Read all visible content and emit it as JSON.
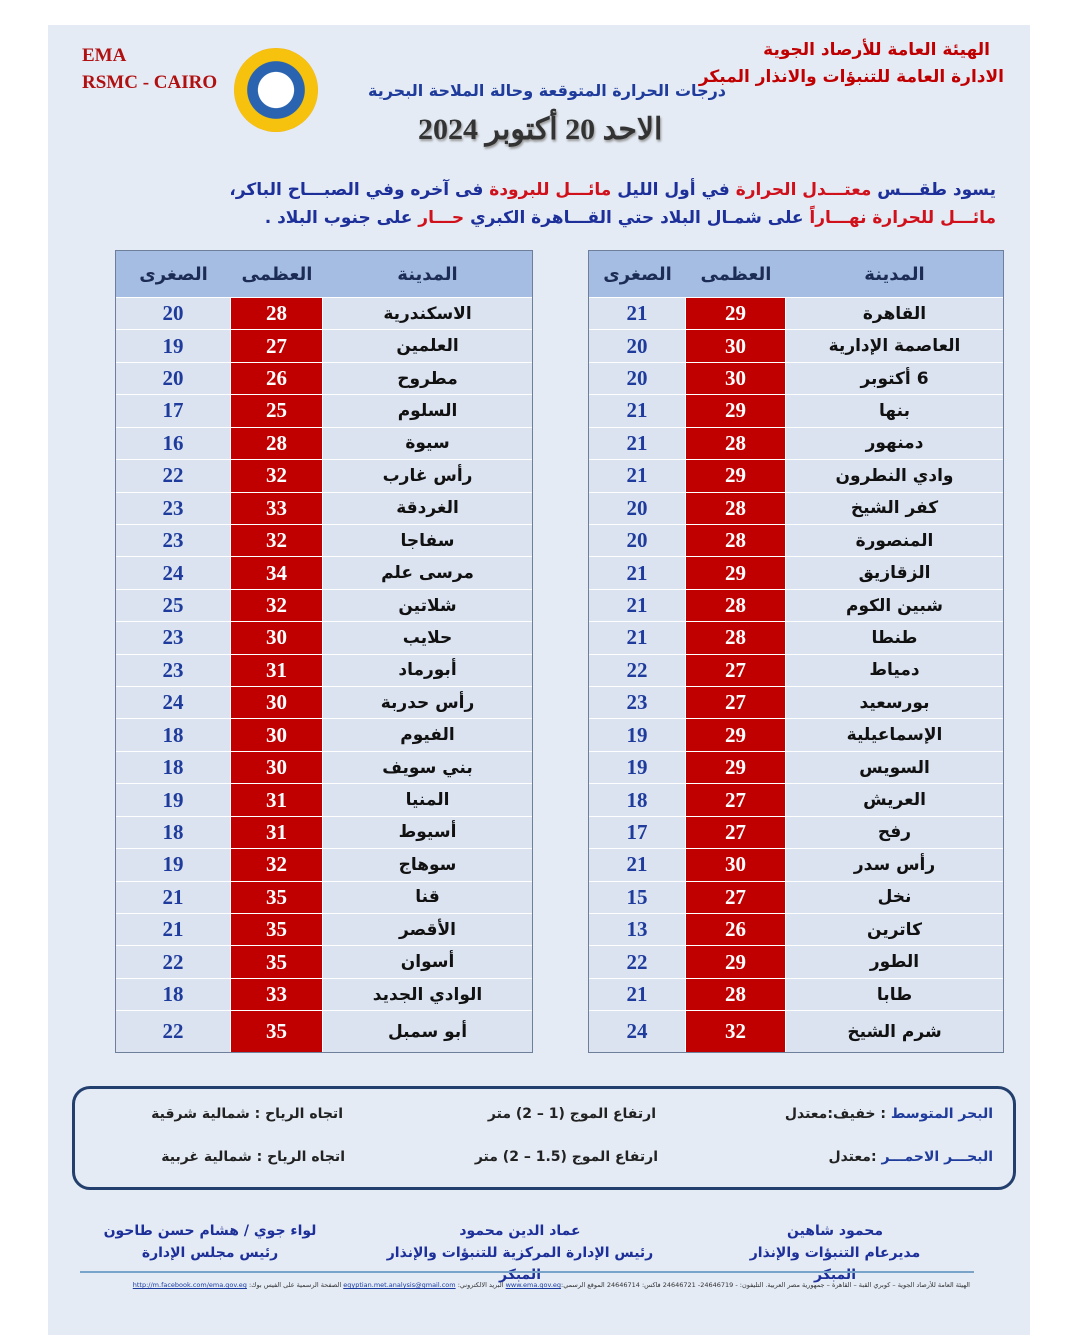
{
  "header": {
    "ema": "EMA",
    "rsmc": "RSMC - CAIRO",
    "org_line1": "الهيئة العامة للأرصاد الجوية",
    "org_line2": "الادارة العامة للتنبؤات والانذار المبكر",
    "subtitle": "درجات الحرارة المتوقعة وحالة الملاحة البحرية",
    "date": "الاحد  20  أكتوبر 2024",
    "logo_text": "EMA"
  },
  "intro": {
    "line1": [
      {
        "t": "يسود طقـــس ",
        "c": "blue"
      },
      {
        "t": "معتـــدل الحرارة",
        "c": "red"
      },
      {
        "t": " في أول الليل ",
        "c": "blue"
      },
      {
        "t": "مائـــل للبرودة",
        "c": "red"
      },
      {
        "t": " فى آخره وفي الصبـــاح الباكر،",
        "c": "blue"
      }
    ],
    "line2": [
      {
        "t": "مائـــل للحرارة نهـــاراً",
        "c": "red"
      },
      {
        "t": " على شمـال البلاد حتي القـــاهرة الكبري ",
        "c": "blue"
      },
      {
        "t": "حـــار",
        "c": "red"
      },
      {
        "t": " على جنوب البلاد .",
        "c": "blue"
      }
    ]
  },
  "columns": {
    "city": "المدينة",
    "max": "العظمى",
    "min": "الصغرى"
  },
  "right_table": [
    [
      "القاهرة",
      29,
      21
    ],
    [
      "العاصمة الإدارية",
      30,
      20
    ],
    [
      "6 أكتوبر",
      30,
      20
    ],
    [
      "بنها",
      29,
      21
    ],
    [
      "دمنهور",
      28,
      21
    ],
    [
      "وادي النطرون",
      29,
      21
    ],
    [
      "كفر الشيخ",
      28,
      20
    ],
    [
      "المنصورة",
      28,
      20
    ],
    [
      "الزقازيق",
      29,
      21
    ],
    [
      "شبين الكوم",
      28,
      21
    ],
    [
      "طنطا",
      28,
      21
    ],
    [
      "دمياط",
      27,
      22
    ],
    [
      "بورسعيد",
      27,
      23
    ],
    [
      "الإسماعيلية",
      29,
      19
    ],
    [
      "السويس",
      29,
      19
    ],
    [
      "العريش",
      27,
      18
    ],
    [
      "رفح",
      27,
      17
    ],
    [
      "رأس سدر",
      30,
      21
    ],
    [
      "نخل",
      27,
      15
    ],
    [
      "كاترين",
      26,
      13
    ],
    [
      "الطور",
      29,
      22
    ],
    [
      "طابا",
      28,
      21
    ],
    [
      "شرم الشيخ",
      32,
      24
    ]
  ],
  "left_table": [
    [
      "الاسكندرية",
      28,
      20
    ],
    [
      "العلمين",
      27,
      19
    ],
    [
      "مطروح",
      26,
      20
    ],
    [
      "السلوم",
      25,
      17
    ],
    [
      "سيوة",
      28,
      16
    ],
    [
      "رأس غارب",
      32,
      22
    ],
    [
      "الغردقة",
      33,
      23
    ],
    [
      "سفاجا",
      32,
      23
    ],
    [
      "مرسى علم",
      34,
      24
    ],
    [
      "شلاتين",
      32,
      25
    ],
    [
      "حلايب",
      30,
      23
    ],
    [
      "أبورماد",
      31,
      23
    ],
    [
      "رأس حدربة",
      30,
      24
    ],
    [
      "الفيوم",
      30,
      18
    ],
    [
      "بني سويف",
      30,
      18
    ],
    [
      "المنيا",
      31,
      19
    ],
    [
      "أسيوط",
      31,
      18
    ],
    [
      "سوهاج",
      32,
      19
    ],
    [
      "قنا",
      35,
      21
    ],
    [
      "الأقصر",
      35,
      21
    ],
    [
      "أسوان",
      35,
      22
    ],
    [
      "الوادي الجديد",
      33,
      18
    ],
    [
      "أبو سمبل",
      35,
      22
    ]
  ],
  "sea": {
    "med": {
      "name": "البحر المتوسط",
      "state": " : خفيف:معتدل",
      "waves": "ارتفاع الموج (1 – 2) متر",
      "wind": "اتجاه الرياح : شمالية شرقية"
    },
    "red": {
      "name": "البحـــر الاحمـــر",
      "state": " :معتدل",
      "waves": "ارتفاع الموج (1.5 – 2) متر",
      "wind": "اتجاه الرياح : شمالية غربية"
    }
  },
  "signatures": [
    {
      "name": "محمود شاهين",
      "title": "مديرعام التنبؤات والإنذار المبكر"
    },
    {
      "name": "عماد الدين محمود",
      "title": "رئيس الإدارة المركزية للتنبؤات والإنذار المبكر"
    },
    {
      "name": "لواء جوي / هشام حسن طاحون",
      "title": "رئيس مجلس الإدارة"
    }
  ],
  "footer": {
    "address": "الهيئة العامة للأرصاد الجوية – كوبري القبة – القاهرة – جمهورية مصر العربية. التليفون: - 24646719- 24646721 فاكس: 24646714 الموقع الرسمي:",
    "site": "www.ema.gov.eg",
    "email_label": " البريد الالكتروني: ",
    "email": "egyptian.met.analysis@gmail.com",
    "fb_label": " الصفحة الرسمية على الفيس بوك: ",
    "fb": "http://m.facebook.com/ema.gov.eg"
  },
  "colors": {
    "max_bg": "#c00000",
    "header_bg": "#a6bde3",
    "blue_text": "#1f3c9c",
    "red_text": "#d0101a"
  }
}
